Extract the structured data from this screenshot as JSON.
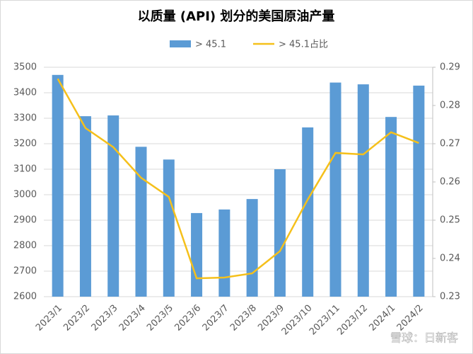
{
  "chart_data": {
    "type": "bar-line",
    "title": "以质量 (API) 划分的美国原油产量",
    "categories": [
      "2023/1",
      "2023/2",
      "2023/3",
      "2023/4",
      "2023/5",
      "2023/6",
      "2023/7",
      "2023/8",
      "2023/9",
      "2023/10",
      "2023/11",
      "2023/12",
      "2024/1",
      "2024/2"
    ],
    "series": [
      {
        "name": "> 45.1",
        "type": "bar",
        "color": "#5b9bd5",
        "values": [
          3470,
          3308,
          3311,
          3188,
          3138,
          2928,
          2942,
          2983,
          3100,
          3264,
          3440,
          3433,
          3305,
          3428
        ]
      },
      {
        "name": "> 45.1占比",
        "type": "line",
        "axis": "y2",
        "color": "#f5c01b",
        "values": [
          0.287,
          0.2741,
          0.2691,
          0.2611,
          0.2561,
          0.2348,
          0.235,
          0.2361,
          0.2419,
          0.2554,
          0.2676,
          0.2672,
          0.273,
          0.2702
        ]
      }
    ],
    "ylim": [
      2600,
      3500
    ],
    "yticks": [
      2600,
      2700,
      2800,
      2900,
      3000,
      3100,
      3200,
      3300,
      3400,
      3500
    ],
    "y2lim": [
      0.23,
      0.29
    ],
    "y2ticks": [
      0.23,
      0.24,
      0.25,
      0.26,
      0.27,
      0.28,
      0.29
    ],
    "grid": true,
    "legend": "top",
    "watermark": "雪球：日新客"
  }
}
